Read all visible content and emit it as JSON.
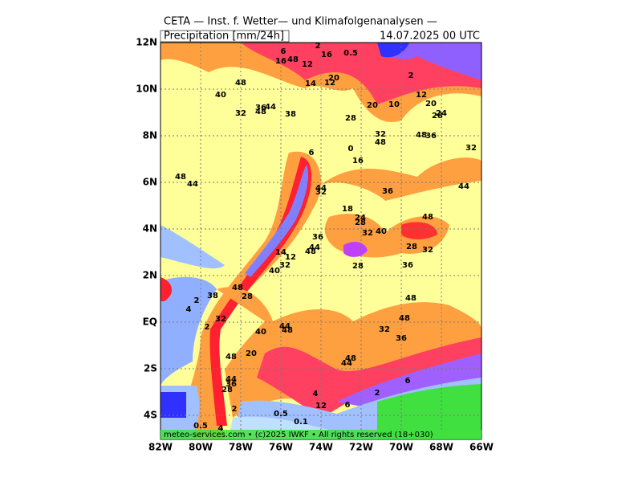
{
  "header": {
    "title": "CETA — Inst. f. Wetter— und Klimafolgenanalysen —",
    "field": "Precipitation [mm/24h]",
    "time": "14.07.2025 00 UTC"
  },
  "axes": {
    "lon": [
      "82W",
      "80W",
      "78W",
      "76W",
      "74W",
      "72W",
      "70W",
      "68W",
      "66W"
    ],
    "lat": [
      "12N",
      "10N",
      "8N",
      "6N",
      "4N",
      "2N",
      "EQ",
      "2S",
      "4S"
    ]
  },
  "footer": "meteo-services.com • (c)2025 IWKF • All rights reserved (18+030)",
  "labels": [
    2,
    0.5,
    6,
    16,
    16,
    12,
    48,
    2,
    14,
    20,
    12,
    48,
    40,
    32,
    36,
    44,
    48,
    38,
    28,
    20,
    10,
    12,
    20,
    28,
    24,
    32,
    48,
    48,
    36,
    32,
    6,
    0,
    16,
    48,
    44,
    36,
    44,
    32,
    44,
    18,
    24,
    28,
    48,
    32,
    40,
    36,
    44,
    48,
    28,
    32,
    14,
    12,
    32,
    40,
    28,
    36,
    48,
    28,
    38,
    2,
    4,
    48,
    32,
    2,
    48,
    40,
    44,
    48,
    32,
    36,
    48,
    20,
    48,
    44,
    44,
    36,
    28,
    2,
    6,
    4,
    6,
    2,
    0.5,
    0.1,
    0.5,
    4,
    12
  ]
}
